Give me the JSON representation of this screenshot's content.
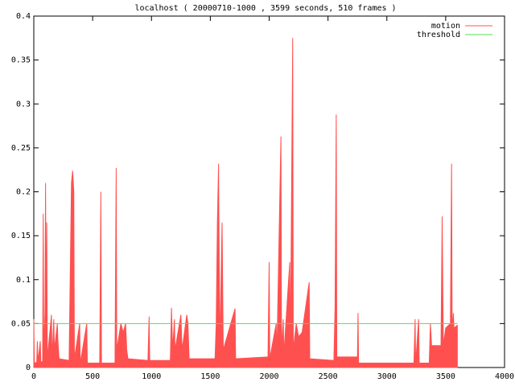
{
  "chart_data": {
    "type": "line",
    "title": "localhost ( 20000710-1000 , 3599 seconds, 510 frames )",
    "xlim": [
      0,
      4000
    ],
    "xticks": [
      0,
      500,
      1000,
      1500,
      2000,
      2500,
      3000,
      3500,
      4000
    ],
    "ylim": [
      0,
      0.4
    ],
    "yticks": [
      0,
      0.05,
      0.1,
      0.15,
      0.2,
      0.25,
      0.3,
      0.35,
      0.4
    ],
    "legend": "top-right",
    "series": [
      {
        "name": "motion",
        "color": "#ff5050",
        "fill": true,
        "x": [
          0,
          5,
          25,
          30,
          35,
          55,
          60,
          75,
          80,
          85,
          95,
          100,
          105,
          110,
          115,
          150,
          155,
          170,
          175,
          200,
          205,
          215,
          300,
          320,
          330,
          340,
          345,
          390,
          395,
          450,
          455,
          560,
          570,
          575,
          690,
          700,
          705,
          740,
          760,
          780,
          790,
          800,
          970,
          980,
          985,
          1160,
          1170,
          1180,
          1195,
          1200,
          1250,
          1260,
          1300,
          1310,
          1320,
          1540,
          1550,
          1560,
          1570,
          1580,
          1600,
          1610,
          1710,
          1715,
          1990,
          2000,
          2005,
          2060,
          2065,
          2100,
          2105,
          2120,
          2125,
          2175,
          2180,
          2200,
          2205,
          2230,
          2250,
          2280,
          2340,
          2345,
          2550,
          2560,
          2570,
          2575,
          2750,
          2755,
          2760,
          3230,
          3240,
          3245,
          3270,
          3275,
          3360,
          3370,
          3380,
          3460,
          3470,
          3480,
          3500,
          3540,
          3550,
          3555,
          3565,
          3570,
          3599
        ],
        "values": [
          0.055,
          0.005,
          0.006,
          0.03,
          0.006,
          0.03,
          0.006,
          0.007,
          0.175,
          0.01,
          0.065,
          0.21,
          0.02,
          0.165,
          0.01,
          0.06,
          0.01,
          0.055,
          0.02,
          0.05,
          0.03,
          0.01,
          0.008,
          0.21,
          0.224,
          0.2,
          0.01,
          0.05,
          0.005,
          0.05,
          0.005,
          0.005,
          0.2,
          0.005,
          0.005,
          0.227,
          0.02,
          0.05,
          0.04,
          0.05,
          0.02,
          0.01,
          0.008,
          0.058,
          0.008,
          0.008,
          0.068,
          0.02,
          0.055,
          0.02,
          0.06,
          0.02,
          0.06,
          0.05,
          0.01,
          0.01,
          0.05,
          0.165,
          0.232,
          0.02,
          0.165,
          0.02,
          0.067,
          0.01,
          0.012,
          0.12,
          0.01,
          0.05,
          0.01,
          0.263,
          0.02,
          0.055,
          0.015,
          0.12,
          0.01,
          0.375,
          0.02,
          0.05,
          0.035,
          0.04,
          0.097,
          0.01,
          0.008,
          0.07,
          0.288,
          0.012,
          0.012,
          0.062,
          0.005,
          0.005,
          0.055,
          0.005,
          0.055,
          0.005,
          0.005,
          0.05,
          0.025,
          0.025,
          0.172,
          0.025,
          0.045,
          0.05,
          0.232,
          0.04,
          0.062,
          0.045,
          0.048
        ]
      },
      {
        "name": "threshold",
        "color": "#50e050",
        "fill": false,
        "x": [
          0,
          3599
        ],
        "values": [
          0.05,
          0.05
        ]
      }
    ]
  }
}
